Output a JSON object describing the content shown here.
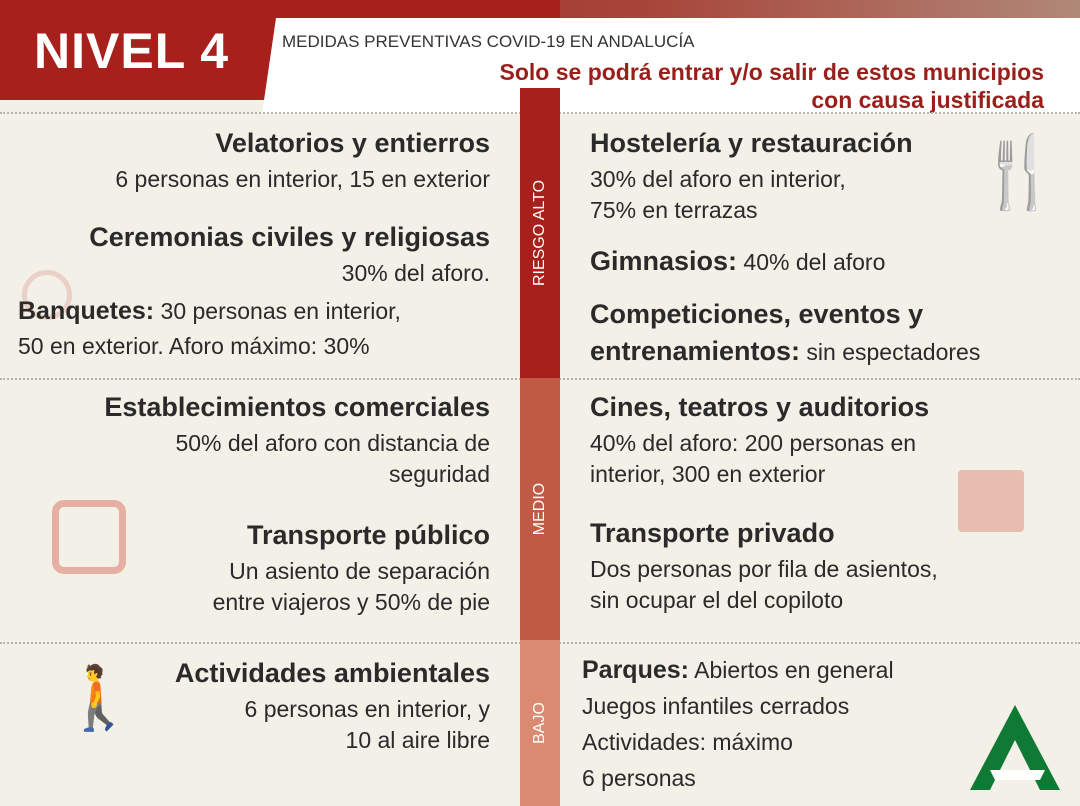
{
  "header": {
    "level": "NIVEL 4",
    "subtitle": "MEDIDAS PREVENTIVAS COVID-19 EN ANDALUCÍA",
    "headline_1": "Solo se podrá entrar y/o salir de estos municipios",
    "headline_2": "con causa justificada"
  },
  "risk": {
    "high": "RIESGO ALTO",
    "medium": "MEDIO",
    "low": "BAJO",
    "colors": {
      "high": "#a8201c",
      "medium": "#c05a44",
      "low": "#d98a70"
    }
  },
  "left": [
    {
      "title": "Velatorios y entierros",
      "text": [
        "6 personas en interior, 15 en exterior"
      ]
    },
    {
      "title": "Ceremonias civiles y religiosas",
      "text": [
        "30% del aforo."
      ]
    },
    {
      "title": "Banquetes:",
      "inline": " 30 personas en interior,",
      "text": [
        "50 en exterior. Aforo máximo: 30%"
      ]
    },
    {
      "title": "Establecimientos comerciales",
      "text": [
        "50% del aforo con distancia de",
        "seguridad"
      ]
    },
    {
      "title": "Transporte público",
      "text": [
        "Un asiento de separación",
        "entre viajeros y 50% de pie"
      ]
    },
    {
      "title": "Actividades ambientales",
      "text": [
        "6 personas en interior, y",
        "10 al aire libre"
      ]
    }
  ],
  "right": [
    {
      "title": "Hostelería y restauración",
      "text": [
        "30% del aforo en interior,",
        "75% en terrazas"
      ]
    },
    {
      "title": "Gimnasios:",
      "inline": " 40% del aforo"
    },
    {
      "title": "Competiciones, eventos y",
      "title2": "entrenamientos:",
      "inline": " sin espectadores"
    },
    {
      "title": "Cines, teatros y auditorios",
      "text": [
        "40% del aforo: 200 personas en",
        "interior, 300 en exterior"
      ]
    },
    {
      "title": "Transporte privado",
      "text": [
        "Dos personas por fila de asientos,",
        "sin ocupar el del copiloto"
      ]
    },
    {
      "title": "Parques:",
      "inline": " Abiertos en general",
      "text": [
        "Juegos infantiles cerrados",
        "Actividades: máximo",
        "6 personas"
      ]
    }
  ],
  "icons": [
    "cutlery-icon",
    "rings-icon",
    "bus-icon",
    "clapperboard-icon",
    "hiker-icon",
    "junta-andalucia-logo"
  ]
}
